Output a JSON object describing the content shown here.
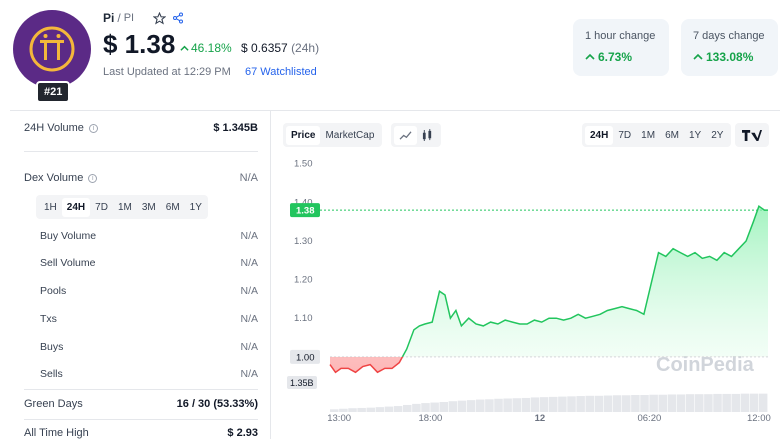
{
  "coin": {
    "name": "Pi",
    "separator": "/",
    "symbol": "PI",
    "rank": "#21",
    "price": "$ 1.38",
    "change_24h_pct": "46.18%",
    "usd_value": "$ 0.6357",
    "usd_span": "(24h)",
    "last_updated": "Last Updated at 12:29 PM",
    "watchlisted": "67 Watchlisted",
    "logo_color": "#5b2a86",
    "logo_glyph_color": "#f4b73b"
  },
  "changes": [
    {
      "label": "1 hour change",
      "value": "6.73%"
    },
    {
      "label": "7 days change",
      "value": "133.08%"
    }
  ],
  "stats": {
    "volume_24h": {
      "label": "24H Volume",
      "value": "$ 1.345B"
    },
    "dex_volume": {
      "label": "Dex Volume",
      "value": "N/A"
    },
    "dex_tabs": [
      "1H",
      "24H",
      "7D",
      "1M",
      "3M",
      "6M",
      "1Y"
    ],
    "dex_active_tab": "24H",
    "dex_rows": [
      {
        "label": "Buy Volume",
        "value": "N/A"
      },
      {
        "label": "Sell Volume",
        "value": "N/A"
      },
      {
        "label": "Pools",
        "value": "N/A"
      },
      {
        "label": "Txs",
        "value": "N/A"
      },
      {
        "label": "Buys",
        "value": "N/A"
      },
      {
        "label": "Sells",
        "value": "N/A"
      }
    ],
    "green_days": {
      "label": "Green Days",
      "value": "16 / 30 (53.33%)"
    },
    "all_time_high": {
      "label": "All Time High",
      "value": "$ 2.93"
    }
  },
  "chart_controls": {
    "metric_tabs": [
      "Price",
      "MarketCap"
    ],
    "metric_active": "Price",
    "type_icons": [
      "line-chart-icon",
      "candlestick-icon"
    ],
    "range_tabs": [
      "24H",
      "7D",
      "1M",
      "6M",
      "1Y",
      "2Y"
    ],
    "range_active": "24H",
    "tradingview_icon": "tradingview-icon"
  },
  "chart_data": {
    "type": "area",
    "watermark": "CoinPedia",
    "y_ticks": [
      "1.50",
      "1.40",
      "1.30",
      "1.20",
      "1.10",
      "1.00"
    ],
    "ylim": [
      0.94,
      1.52
    ],
    "x_ticks": [
      "13:00",
      "18:00",
      "12",
      "06:20",
      "12:00"
    ],
    "x_tick_positions": [
      0.5,
      5.5,
      11.5,
      17.5,
      23.5
    ],
    "xlim": [
      0,
      24
    ],
    "baseline": 1.0,
    "baseline_label": "1.00",
    "current_price": 1.38,
    "current_price_label": "1.38",
    "volume_label": "1.35B",
    "colors": {
      "up": "#22c55e",
      "down": "#ef4444",
      "fill_up": "#bbf7d0",
      "fill_down": "#fecaca",
      "price_tag": "#22c55e"
    },
    "series": [
      {
        "x": [
          0,
          0.3,
          0.6,
          1.0,
          1.4,
          1.8,
          2.2,
          2.6,
          3.0,
          3.4,
          3.8,
          4.2,
          4.6,
          4.9,
          5.2,
          5.6,
          6.0,
          6.3,
          6.6,
          6.9,
          7.2,
          7.6,
          8.0,
          8.4,
          8.8,
          9.2,
          9.6,
          10.0,
          10.4,
          10.8,
          11.2,
          11.6,
          12.0,
          12.4,
          12.8,
          13.2,
          13.6,
          14.0,
          14.4,
          14.8,
          15.2,
          15.6,
          16.0,
          16.4,
          16.8,
          17.2,
          17.6,
          18.0,
          18.4,
          18.8,
          19.2,
          19.6,
          20.0,
          20.4,
          20.8,
          21.2,
          21.6,
          22.0,
          22.4,
          22.8,
          23.2,
          23.5,
          23.8,
          24.0
        ],
        "y": [
          0.98,
          0.96,
          0.97,
          0.97,
          0.96,
          0.975,
          0.98,
          0.96,
          0.97,
          0.97,
          0.985,
          1.02,
          1.07,
          1.08,
          1.085,
          1.09,
          1.17,
          1.16,
          1.1,
          1.12,
          1.08,
          1.1,
          1.085,
          1.08,
          1.09,
          1.085,
          1.095,
          1.09,
          1.085,
          1.085,
          1.095,
          1.09,
          1.1,
          1.1,
          1.095,
          1.1,
          1.11,
          1.1,
          1.105,
          1.11,
          1.12,
          1.125,
          1.13,
          1.125,
          1.12,
          1.11,
          1.19,
          1.27,
          1.26,
          1.28,
          1.27,
          1.26,
          1.27,
          1.255,
          1.26,
          1.25,
          1.27,
          1.26,
          1.28,
          1.3,
          1.35,
          1.39,
          1.38,
          1.38
        ]
      }
    ],
    "volume_bars": [
      0.1,
      0.12,
      0.14,
      0.15,
      0.16,
      0.18,
      0.2,
      0.22,
      0.26,
      0.3,
      0.33,
      0.35,
      0.37,
      0.4,
      0.42,
      0.44,
      0.46,
      0.47,
      0.49,
      0.5,
      0.51,
      0.52,
      0.54,
      0.55,
      0.56,
      0.57,
      0.58,
      0.59,
      0.6,
      0.6,
      0.61,
      0.62,
      0.62,
      0.63,
      0.63,
      0.64,
      0.64,
      0.65,
      0.65,
      0.66,
      0.66,
      0.66,
      0.67,
      0.67,
      0.67,
      0.68,
      0.68,
      0.68
    ]
  }
}
